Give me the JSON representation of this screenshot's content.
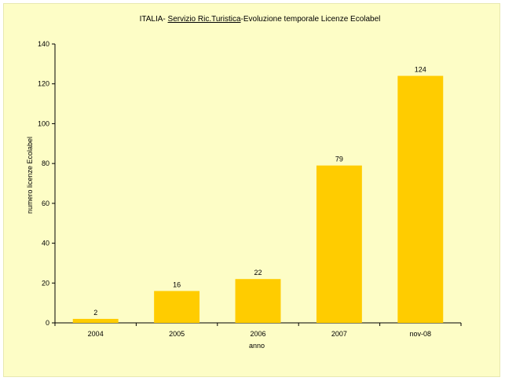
{
  "chart_data": {
    "type": "bar",
    "title": {
      "prefix": "ITALIA- ",
      "underlined": "Servizio Ric.Turistica",
      "suffix": "-Evoluzione temporale Licenze Ecolabel"
    },
    "xlabel": "anno",
    "ylabel": "numero licenze Ecolabel",
    "categories": [
      "2004",
      "2005",
      "2006",
      "2007",
      "nov-08"
    ],
    "values": [
      2,
      16,
      22,
      79,
      124
    ],
    "ylim": [
      0,
      140
    ],
    "yticks": [
      "0",
      "20",
      "40",
      "60",
      "80",
      "100",
      "120",
      "140"
    ],
    "data_labels": [
      "2",
      "16",
      "22",
      "79",
      "124"
    ],
    "grid": false,
    "legend": "none",
    "bar_color": "#ffcc00",
    "background_color": "#fdfdc6"
  }
}
